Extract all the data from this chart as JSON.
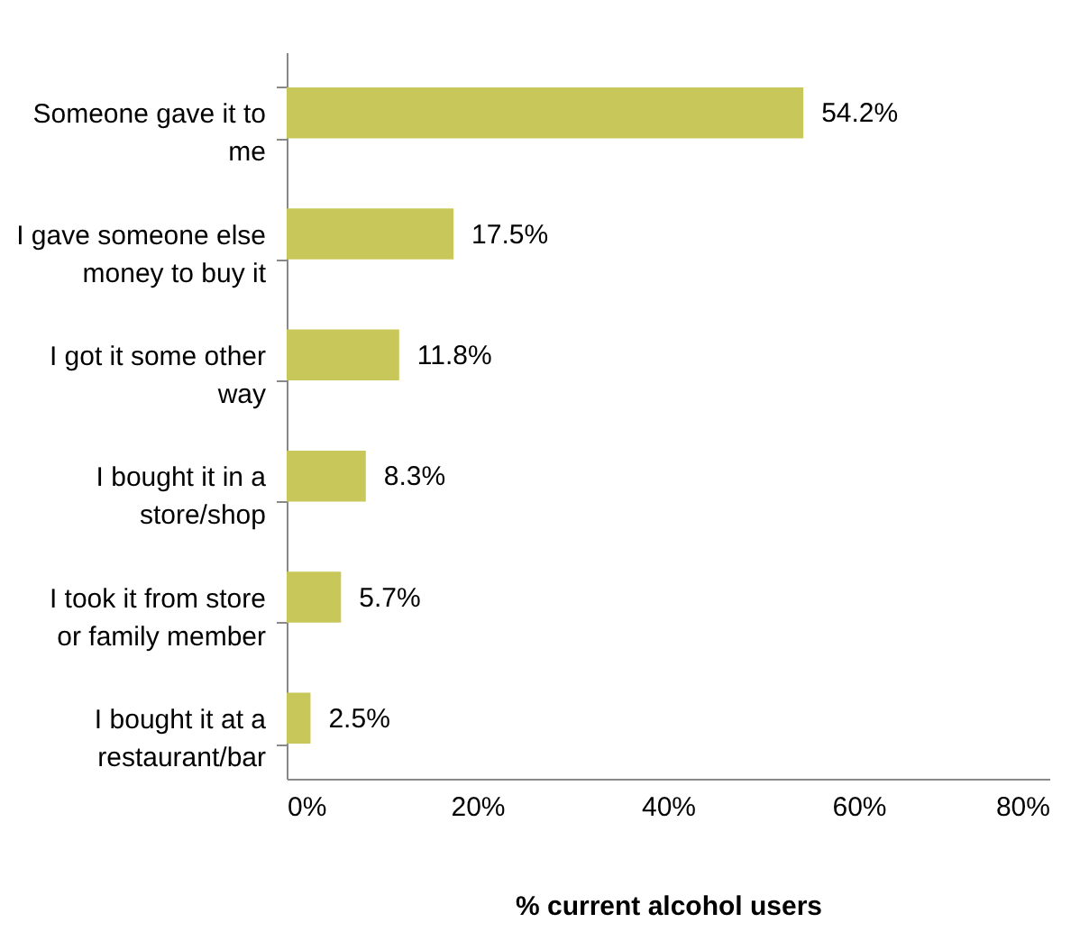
{
  "chart_data": {
    "type": "bar",
    "orientation": "horizontal",
    "xlabel": "% current alcohol users",
    "categories": [
      "Someone gave it to me",
      "I gave someone else money to buy it",
      "I got it some other way",
      "I bought it in a store/shop",
      "I took it from store or family member",
      "I bought it at a restaurant/bar"
    ],
    "values": [
      54.2,
      17.5,
      11.8,
      8.3,
      5.7,
      2.5
    ],
    "value_labels": [
      "54.2%",
      "17.5%",
      "11.8%",
      "8.3%",
      "5.7%",
      "2.5%"
    ],
    "color": "#c8c85a",
    "xlim": [
      0,
      80
    ],
    "xticks": [
      {
        "value": 0,
        "label": "0%"
      },
      {
        "value": 20,
        "label": "20%"
      },
      {
        "value": 40,
        "label": "40%"
      },
      {
        "value": 60,
        "label": "60%"
      },
      {
        "value": 80,
        "label": "80%"
      }
    ],
    "grid": false
  }
}
